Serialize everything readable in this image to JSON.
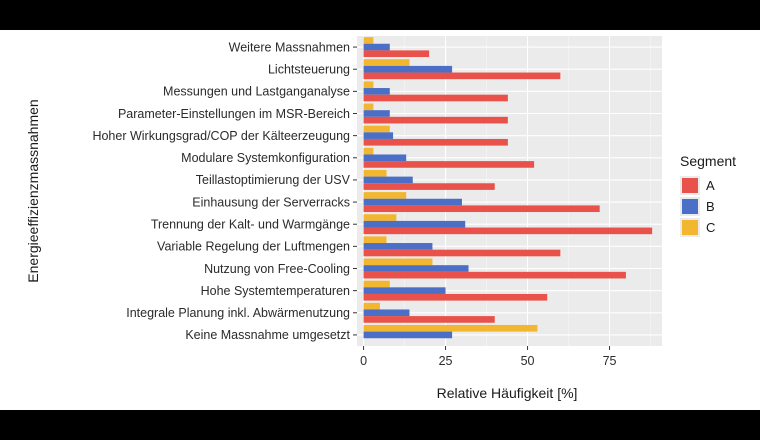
{
  "chart_data": {
    "type": "bar",
    "orientation": "horizontal",
    "categories": [
      "Weitere Massnahmen",
      "Lichtsteuerung",
      "Messungen und Lastganganalyse",
      "Parameter-Einstellungen im MSR-Bereich",
      "Hoher Wirkungsgrad/COP der Kälteerzeugung",
      "Modulare Systemkonfiguration",
      "Teillastoptimierung der USV",
      "Einhausung der Serverracks",
      "Trennung der Kalt- und Warmgänge",
      "Variable Regelung der Luftmengen",
      "Nutzung von Free-Cooling",
      "Hohe Systemtemperaturen",
      "Integrale Planung inkl. Abwärmenutzung",
      "Keine Massnahme umgesetzt"
    ],
    "series": [
      {
        "name": "A",
        "color": "#e8524a",
        "values": [
          20,
          60,
          44,
          44,
          44,
          52,
          40,
          72,
          88,
          60,
          80,
          56,
          40,
          0
        ]
      },
      {
        "name": "B",
        "color": "#4b6fc6",
        "values": [
          8,
          27,
          8,
          8,
          9,
          13,
          15,
          30,
          31,
          21,
          32,
          25,
          14,
          27
        ]
      },
      {
        "name": "C",
        "color": "#f2b631",
        "values": [
          3,
          14,
          3,
          3,
          8,
          3,
          7,
          13,
          10,
          7,
          21,
          8,
          5,
          53
        ]
      }
    ],
    "xlabel": "Relative Häufigkeit [%]",
    "ylabel": "Energieeffizienzmassnahmen",
    "xlim": [
      -2,
      91
    ],
    "xticks": [
      0,
      25,
      50,
      75
    ],
    "legend_title": "Segment",
    "legend_position": "right",
    "grid": true,
    "panel_background": "#ebebeb"
  }
}
